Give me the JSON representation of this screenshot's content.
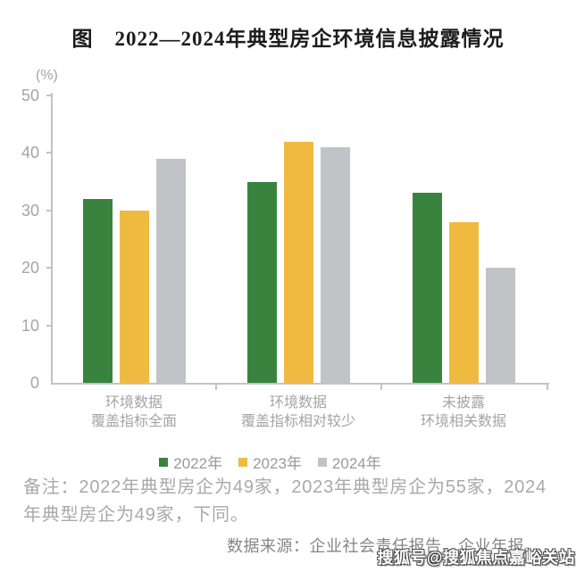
{
  "title": "图　2022—2024年典型房企环境信息披露情况",
  "chart_data": {
    "type": "bar",
    "title": "2022—2024年典型房企环境信息披露情况",
    "unit_label": "(%)",
    "ylim": [
      0,
      50
    ],
    "yticks": [
      0,
      10,
      20,
      30,
      40,
      50
    ],
    "grid": false,
    "legend_position": "bottom",
    "categories": [
      [
        "环境数据",
        "覆盖指标全面"
      ],
      [
        "环境数据",
        "覆盖指标相对较少"
      ],
      [
        "未披露",
        "环境相关数据"
      ]
    ],
    "series": [
      {
        "name": "2022年",
        "color": "#38843f",
        "values": [
          32,
          35,
          33
        ]
      },
      {
        "name": "2023年",
        "color": "#efba3f",
        "values": [
          30,
          42,
          28
        ]
      },
      {
        "name": "2024年",
        "color": "#c1c3c7",
        "values": [
          39,
          41,
          20
        ]
      }
    ]
  },
  "footnote": {
    "lines": [
      "备注：2022年典型房企为49家，2023年典型房企为55家，2024",
      "年典型房企为49家，下同。"
    ]
  },
  "source": "数据来源：企业社会责任报告、企业年报。",
  "watermark": "搜狐号@搜狐焦点嘉峪关站",
  "colors": {
    "axis": "#c2c2c2",
    "label": "#a4a4a4",
    "title": "#1c1c1c"
  }
}
